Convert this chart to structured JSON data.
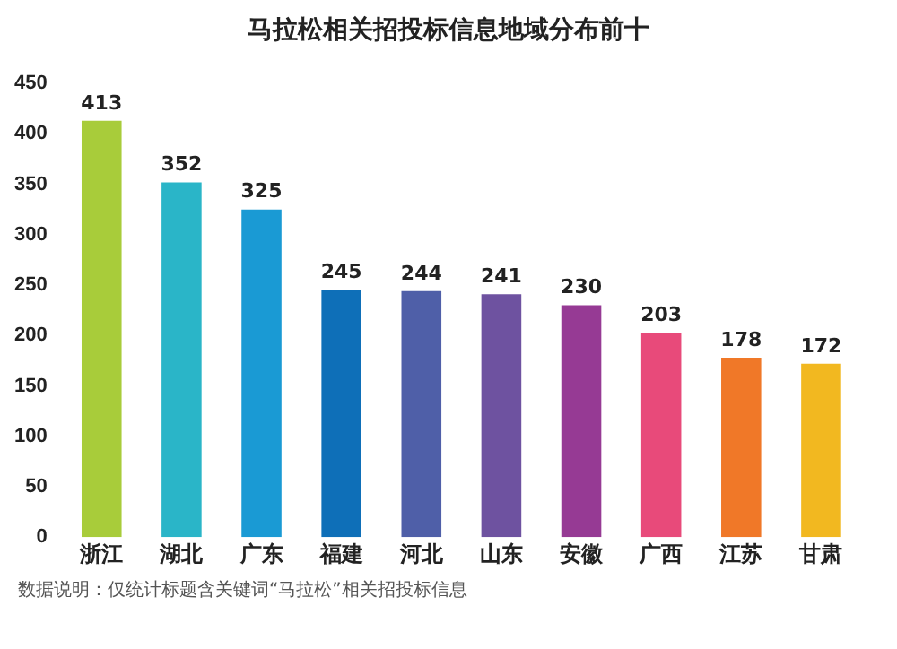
{
  "chart_data": {
    "type": "bar",
    "title": "马拉松相关招投标信息地域分布前十",
    "categories": [
      "浙江",
      "湖北",
      "广东",
      "福建",
      "河北",
      "山东",
      "安徽",
      "广西",
      "江苏",
      "甘肃"
    ],
    "values": [
      413,
      352,
      325,
      245,
      244,
      241,
      230,
      203,
      178,
      172
    ],
    "colors": [
      "#a8cc3a",
      "#2ab5c8",
      "#1a9ad4",
      "#0e6fb8",
      "#4f5fa8",
      "#6e52a0",
      "#963a94",
      "#e84a7a",
      "#f07828",
      "#f2b820"
    ],
    "ylim": [
      0,
      450
    ],
    "yticks": [
      0,
      50,
      100,
      150,
      200,
      250,
      300,
      350,
      400,
      450
    ],
    "grid": false,
    "data_labels": true,
    "annotations": [
      "数据说明：仅统计标题含关键词“马拉松”相关招投标信息"
    ]
  }
}
